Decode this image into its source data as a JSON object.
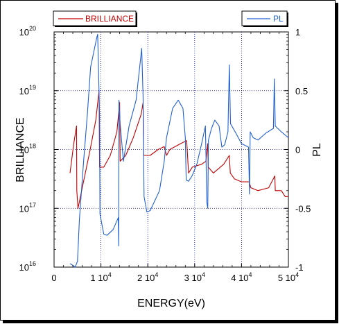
{
  "chart_data": {
    "type": "line",
    "title": "",
    "xlabel": "ENERGY(eV)",
    "ylabel_left": "BRILLIANCE",
    "ylabel_right": "PL",
    "x_range": [
      0,
      50000
    ],
    "y_left_log_range": [
      16,
      20
    ],
    "y_right_range": [
      -1,
      1
    ],
    "grid": true,
    "x_ticks": [
      {
        "value": 0,
        "label": "0"
      },
      {
        "value": 10000,
        "label": "1 10",
        "exp": "4"
      },
      {
        "value": 20000,
        "label": "2 10",
        "exp": "4"
      },
      {
        "value": 30000,
        "label": "3 10",
        "exp": "4"
      },
      {
        "value": 40000,
        "label": "4 10",
        "exp": "4"
      },
      {
        "value": 50000,
        "label": "5 10",
        "exp": "4"
      }
    ],
    "y_left_ticks": [
      {
        "value": 16,
        "label": "10",
        "exp": "16"
      },
      {
        "value": 17,
        "label": "10",
        "exp": "17"
      },
      {
        "value": 18,
        "label": "10",
        "exp": "18"
      },
      {
        "value": 19,
        "label": "10",
        "exp": "19"
      },
      {
        "value": 20,
        "label": "10",
        "exp": "20"
      }
    ],
    "y_right_ticks": [
      {
        "value": 1,
        "label": "1"
      },
      {
        "value": 0.5,
        "label": "0.5"
      },
      {
        "value": 0,
        "label": "0"
      },
      {
        "value": -0.5,
        "label": "-0.5"
      },
      {
        "value": -1,
        "label": "-1"
      }
    ],
    "series": [
      {
        "name": "BRILLIANCE",
        "axis": "left",
        "color": "#c00000",
        "points": [
          [
            3400,
            17.6
          ],
          [
            4200,
            18.1
          ],
          [
            4800,
            18.4
          ],
          [
            4850,
            17.3
          ],
          [
            5100,
            17.0
          ],
          [
            6400,
            17.5
          ],
          [
            7700,
            18.0
          ],
          [
            8900,
            18.5
          ],
          [
            9600,
            19.0
          ],
          [
            9700,
            17.7
          ],
          [
            10600,
            17.7
          ],
          [
            12000,
            17.9
          ],
          [
            13400,
            18.3
          ],
          [
            14000,
            18.8
          ],
          [
            14100,
            17.8
          ],
          [
            15300,
            17.9
          ],
          [
            16900,
            18.2
          ],
          [
            18600,
            18.6
          ],
          [
            19000,
            18.8
          ],
          [
            19100,
            17.9
          ],
          [
            20500,
            17.9
          ],
          [
            22200,
            18.0
          ],
          [
            23500,
            18.05
          ],
          [
            24000,
            17.9
          ],
          [
            24700,
            18.0
          ],
          [
            27000,
            18.1
          ],
          [
            28300,
            18.15
          ],
          [
            28700,
            17.6
          ],
          [
            29500,
            17.7
          ],
          [
            31500,
            17.75
          ],
          [
            32400,
            17.8
          ],
          [
            32800,
            18.1
          ],
          [
            32900,
            17.7
          ],
          [
            34000,
            17.6
          ],
          [
            36200,
            17.75
          ],
          [
            37400,
            17.9
          ],
          [
            37600,
            17.6
          ],
          [
            38500,
            17.5
          ],
          [
            40000,
            17.45
          ],
          [
            41600,
            17.45
          ],
          [
            42000,
            17.35
          ],
          [
            43500,
            17.3
          ],
          [
            45800,
            17.35
          ],
          [
            47100,
            17.55
          ],
          [
            47200,
            17.3
          ],
          [
            48500,
            17.3
          ],
          [
            49300,
            17.2
          ],
          [
            50000,
            17.2
          ]
        ]
      },
      {
        "name": "PL",
        "axis": "right",
        "color": "#2060d0",
        "points": [
          [
            3400,
            -0.97
          ],
          [
            4200,
            -0.99
          ],
          [
            4500,
            -1.0
          ],
          [
            5000,
            -0.95
          ],
          [
            5400,
            -0.6
          ],
          [
            6300,
            -0.1
          ],
          [
            7100,
            0.3
          ],
          [
            7800,
            0.7
          ],
          [
            9100,
            0.95
          ],
          [
            9300,
            0.98
          ],
          [
            9700,
            0.3
          ],
          [
            9800,
            -0.55
          ],
          [
            10600,
            -0.72
          ],
          [
            11300,
            -0.73
          ],
          [
            12600,
            -0.68
          ],
          [
            13700,
            -0.58
          ],
          [
            13800,
            -0.82
          ],
          [
            13850,
            0.42
          ],
          [
            14100,
            0.22
          ],
          [
            14800,
            -0.1
          ],
          [
            16000,
            0.2
          ],
          [
            17500,
            0.42
          ],
          [
            18400,
            0.75
          ],
          [
            18700,
            0.86
          ],
          [
            19000,
            0.45
          ],
          [
            19100,
            0.0
          ],
          [
            19200,
            -0.4
          ],
          [
            19800,
            -0.53
          ],
          [
            20500,
            -0.52
          ],
          [
            22500,
            -0.35
          ],
          [
            23500,
            -0.1
          ],
          [
            24000,
            0.1
          ],
          [
            25300,
            0.35
          ],
          [
            26500,
            0.42
          ],
          [
            27500,
            0.35
          ],
          [
            28000,
            0.1
          ],
          [
            28200,
            -0.26
          ],
          [
            28700,
            -0.27
          ],
          [
            29500,
            -0.22
          ],
          [
            30500,
            -0.12
          ],
          [
            31500,
            0.05
          ],
          [
            32300,
            0.2
          ],
          [
            32600,
            -0.45
          ],
          [
            32800,
            -0.5
          ],
          [
            32950,
            0.08
          ],
          [
            33600,
            0.18
          ],
          [
            34300,
            0.25
          ],
          [
            35200,
            0.2
          ],
          [
            35800,
            0.02
          ],
          [
            36400,
            0.04
          ],
          [
            37100,
            0.15
          ],
          [
            37400,
            0.72
          ],
          [
            37650,
            0.22
          ],
          [
            38500,
            0.16
          ],
          [
            40000,
            0.05
          ],
          [
            41500,
            0.02
          ],
          [
            41700,
            -0.38
          ],
          [
            41850,
            0.15
          ],
          [
            42500,
            0.1
          ],
          [
            43500,
            0.08
          ],
          [
            45200,
            0.14
          ],
          [
            46800,
            0.18
          ],
          [
            47000,
            0.6
          ],
          [
            47200,
            0.2
          ],
          [
            48500,
            0.15
          ],
          [
            50000,
            0.1
          ]
        ]
      }
    ]
  },
  "legend_brilliance": "BRILLIANCE",
  "legend_pl": "PL"
}
